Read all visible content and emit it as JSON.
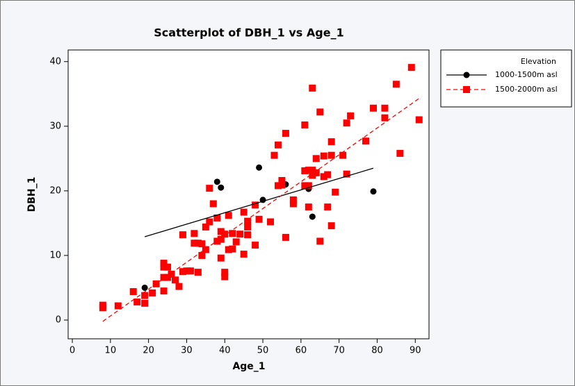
{
  "chart_data": {
    "type": "scatter",
    "title": "Scatterplot of DBH_1 vs Age_1",
    "x_label": "Age_1",
    "y_label": "DBH_1",
    "legend_title": "Elevation",
    "xlim": [
      -1.1,
      93.6
    ],
    "ylim": [
      -2.9,
      41.8
    ],
    "xticks": [
      0,
      10,
      20,
      30,
      40,
      50,
      60,
      70,
      80,
      90
    ],
    "yticks": [
      0,
      10,
      20,
      30,
      40
    ],
    "series": [
      {
        "name": "1000-1500m asl",
        "color": "#000000",
        "marker": "circle",
        "line_style": "solid",
        "x": [
          19,
          38,
          39,
          49,
          50,
          56,
          62,
          63,
          64,
          79
        ],
        "values": [
          5,
          21.4,
          20.5,
          23.6,
          18.6,
          21,
          20.3,
          16,
          22.7,
          19.9
        ],
        "fit": {
          "x": [
            19,
            79
          ],
          "values": [
            12.9,
            23.5
          ]
        }
      },
      {
        "name": "1500-2000m asl",
        "color": "#ff0000",
        "marker": "square",
        "line_style": "dashed",
        "x": [
          8,
          8,
          12,
          16,
          17,
          19,
          19,
          21,
          22,
          24,
          24,
          24,
          24,
          25,
          25,
          26,
          27,
          28,
          29,
          29,
          30,
          31,
          32,
          32,
          33,
          33,
          34,
          34,
          35,
          35,
          36,
          36,
          37,
          38,
          38,
          39,
          39,
          39,
          40,
          40,
          40,
          41,
          41,
          42,
          42,
          43,
          44,
          45,
          45,
          46,
          46,
          46,
          48,
          48,
          49,
          52,
          53,
          54,
          54,
          55,
          55,
          56,
          56,
          58,
          58,
          61,
          61,
          61,
          62,
          62,
          62,
          63,
          63,
          63,
          64,
          64,
          65,
          65,
          66,
          66,
          67,
          67,
          68,
          68,
          68,
          69,
          71,
          72,
          72,
          73,
          77,
          79,
          82,
          82,
          85,
          86,
          89,
          91
        ],
        "values": [
          2.3,
          1.9,
          2.2,
          4.4,
          2.8,
          3.8,
          2.6,
          4.2,
          5.6,
          8.8,
          8.2,
          6.6,
          4.5,
          8.2,
          6.6,
          7.1,
          6.2,
          5.2,
          13.2,
          7.5,
          7.6,
          7.6,
          13.4,
          11.9,
          11.9,
          7.4,
          11.8,
          10,
          10.9,
          14.4,
          15.2,
          20.4,
          18,
          12.2,
          15.8,
          12.5,
          13.7,
          9.6,
          7.4,
          6.7,
          13.3,
          10.9,
          16.2,
          11,
          13.4,
          12.1,
          13.3,
          10.2,
          16.7,
          15.3,
          14.4,
          13.2,
          11.6,
          17.8,
          15.6,
          15.2,
          25.5,
          27.1,
          20.8,
          21.6,
          20.9,
          28.9,
          12.8,
          18,
          18.6,
          30.2,
          23.1,
          20.8,
          20.8,
          17.5,
          23.2,
          35.9,
          22.4,
          23.2,
          22.8,
          25,
          32.2,
          12.2,
          25.4,
          22.2,
          22.5,
          17.5,
          27.6,
          25.5,
          14.6,
          19.8,
          25.5,
          30.5,
          22.6,
          31.6,
          27.7,
          32.8,
          32.8,
          31.3,
          36.5,
          25.8,
          39.1,
          31
        ],
        "fit": {
          "x": [
            8,
            91
          ],
          "values": [
            -0.2,
            34.3
          ]
        }
      }
    ]
  }
}
